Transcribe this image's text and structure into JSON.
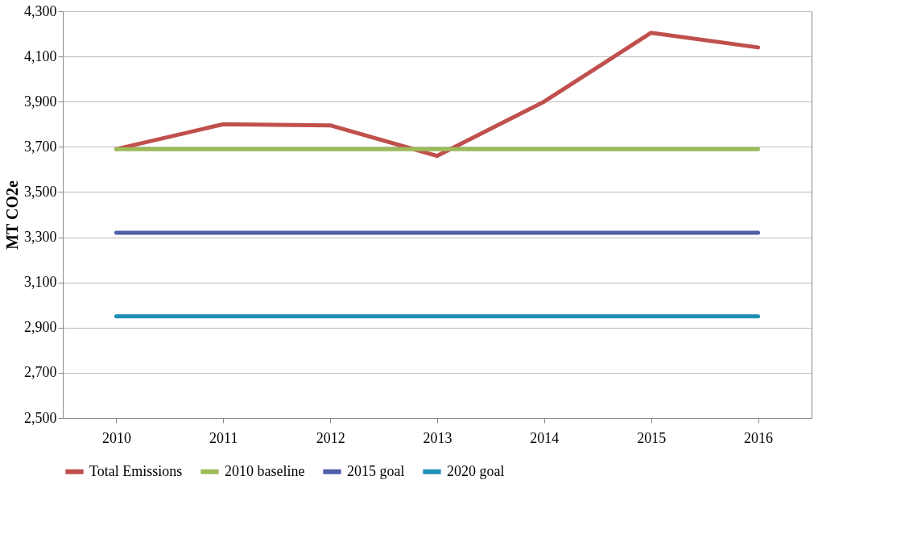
{
  "chart_data": {
    "type": "line",
    "ylabel": "MT CO2e",
    "categories": [
      "2010",
      "2011",
      "2012",
      "2013",
      "2014",
      "2015",
      "2016"
    ],
    "series": [
      {
        "name": "Total Emissions",
        "color": "#c0504d",
        "values": [
          3690,
          3800,
          3795,
          3660,
          3900,
          4205,
          4140
        ]
      },
      {
        "name": "2010 baseline",
        "color": "#9bbb59",
        "values": [
          3690,
          3690,
          3690,
          3690,
          3690,
          3690,
          3690
        ]
      },
      {
        "name": "2015 goal",
        "color": "#4f5fa8",
        "values": [
          3320,
          3320,
          3320,
          3320,
          3320,
          3320,
          3320
        ]
      },
      {
        "name": "2020 goal",
        "color": "#1f8fb5",
        "values": [
          2950,
          2950,
          2950,
          2950,
          2950,
          2950,
          2950
        ]
      }
    ],
    "ylim": [
      2500,
      4300
    ],
    "yticks": [
      {
        "value": 2500,
        "label": "2,500"
      },
      {
        "value": 2700,
        "label": "2,700"
      },
      {
        "value": 2900,
        "label": "2,900"
      },
      {
        "value": 3100,
        "label": "3,100"
      },
      {
        "value": 3300,
        "label": "3,300"
      },
      {
        "value": 3500,
        "label": "3,500"
      },
      {
        "value": 3700,
        "label": "3,700"
      },
      {
        "value": 3900,
        "label": "3,900"
      },
      {
        "value": 4100,
        "label": "4,100"
      },
      {
        "value": 4300,
        "label": "4,300"
      }
    ],
    "grid": "y",
    "legend": "bottom",
    "marker": "none",
    "line_style": "solid"
  }
}
